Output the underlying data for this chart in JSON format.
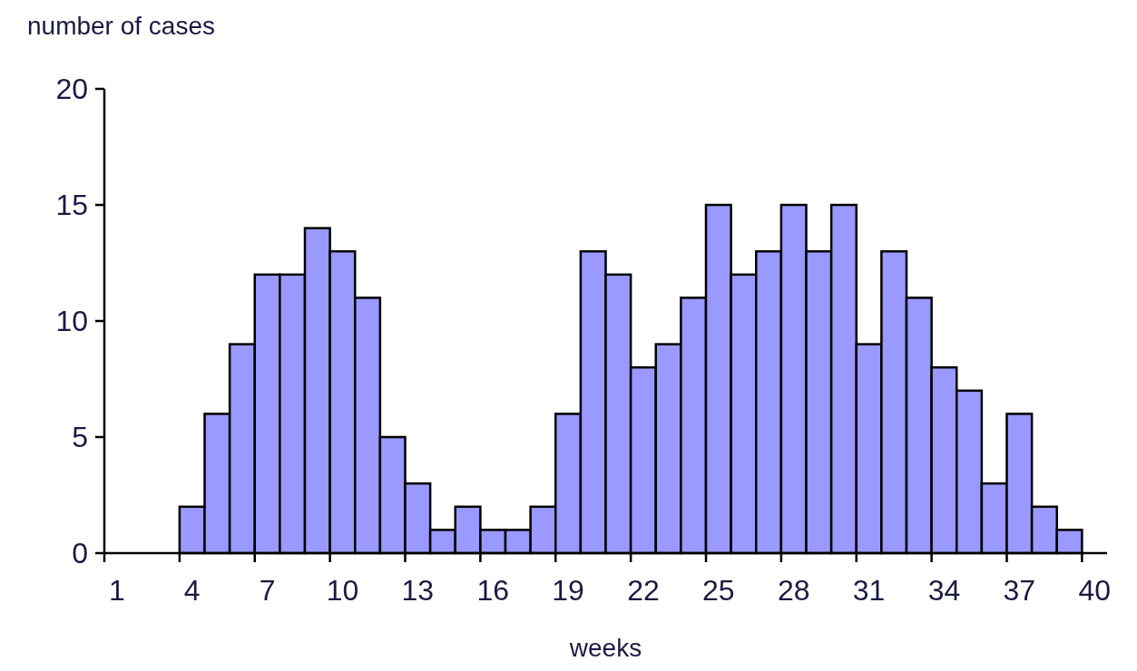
{
  "chart_data": {
    "type": "bar",
    "ylabel": "number of cases",
    "xlabel": "weeks",
    "categories": [
      "1",
      null,
      null,
      "4",
      null,
      null,
      "7",
      null,
      null,
      "10",
      null,
      null,
      "13",
      null,
      null,
      "16",
      null,
      null,
      "19",
      null,
      null,
      "22",
      null,
      null,
      "25",
      null,
      null,
      "28",
      null,
      null,
      "31",
      null,
      null,
      "34",
      null,
      null,
      "37",
      null,
      null,
      "40"
    ],
    "values": [
      0,
      0,
      0,
      2,
      6,
      9,
      12,
      12,
      14,
      13,
      11,
      5,
      3,
      1,
      2,
      1,
      1,
      2,
      6,
      13,
      12,
      8,
      9,
      11,
      15,
      12,
      13,
      15,
      13,
      15,
      9,
      13,
      11,
      8,
      7,
      3,
      6,
      2,
      1,
      0
    ],
    "color": "#9999ff",
    "ylim": [
      0,
      20
    ],
    "yticks": [
      0,
      5,
      10,
      15,
      20
    ],
    "grid": false
  }
}
